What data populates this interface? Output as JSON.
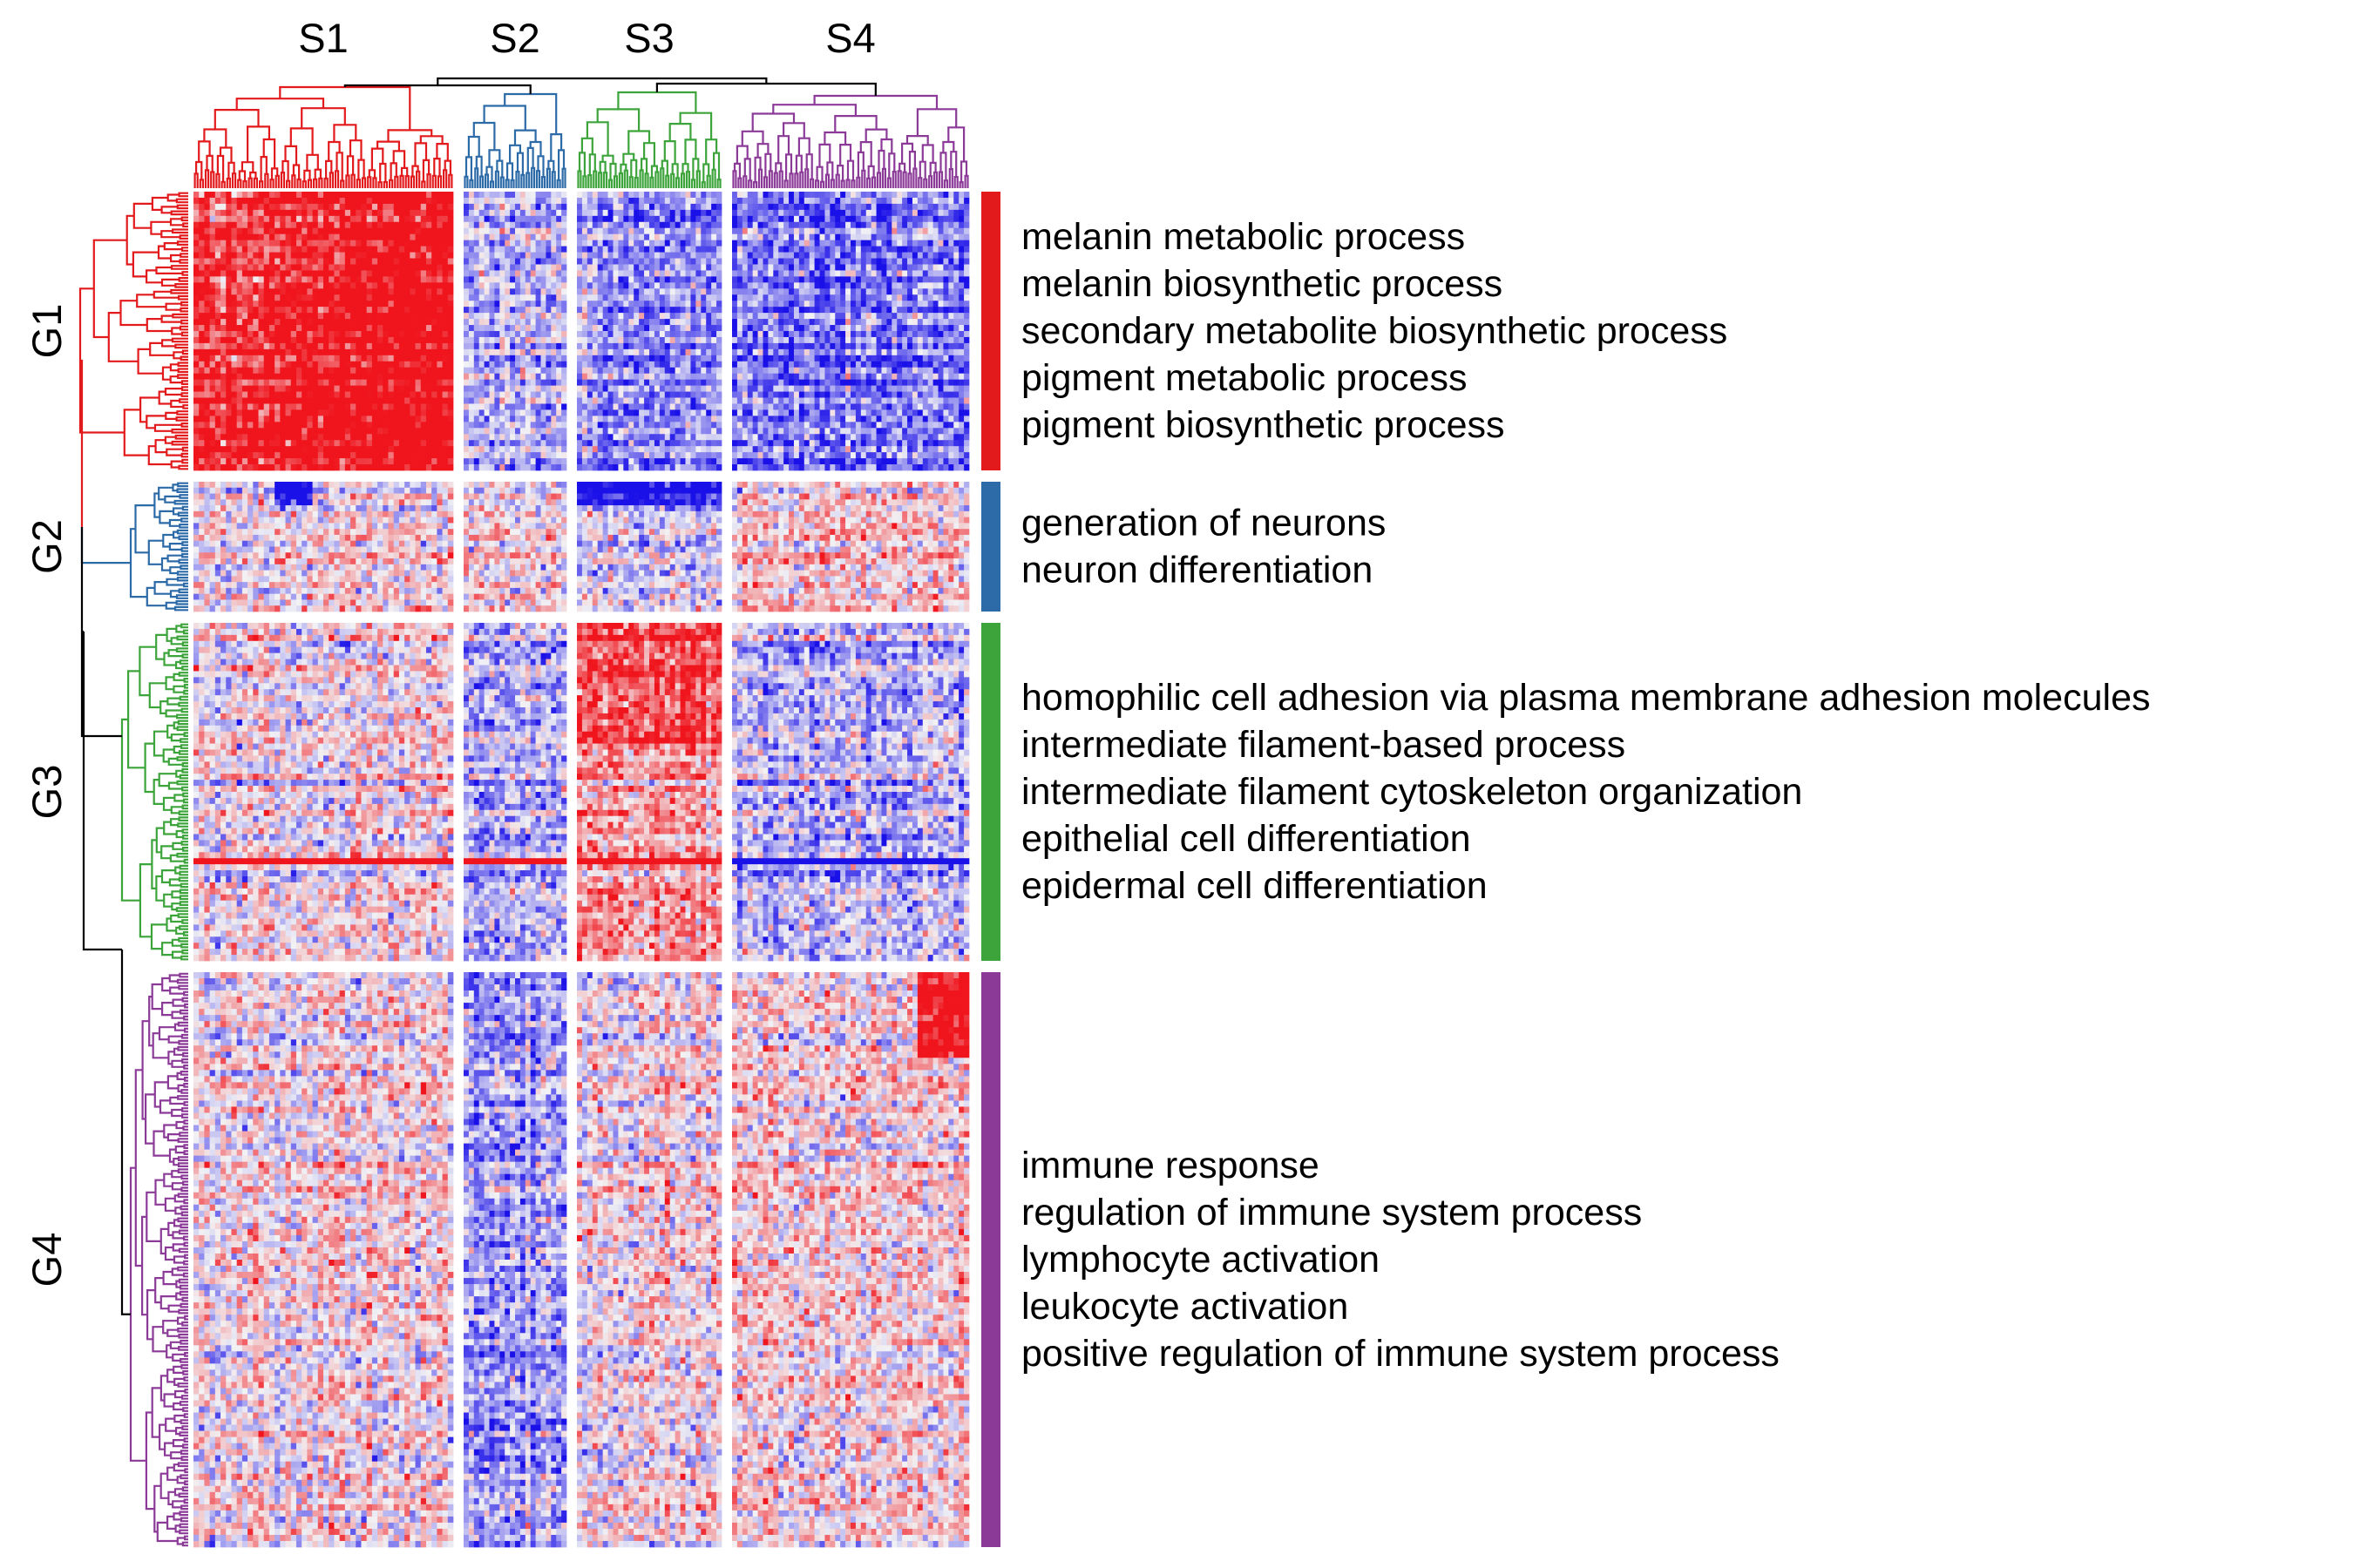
{
  "chart_data": {
    "type": "heatmap",
    "title": "",
    "xlabel": "",
    "ylabel": "",
    "grid": false,
    "legend": "none",
    "color_scale": {
      "low": "#1a10e8",
      "mid": "#f2f2f2",
      "high": "#f0141c"
    },
    "column_clusters": [
      {
        "label": "S1",
        "color": "#e31a1c"
      },
      {
        "label": "S2",
        "color": "#2c6aa8"
      },
      {
        "label": "S3",
        "color": "#3ca43a"
      },
      {
        "label": "S4",
        "color": "#8b3a98"
      }
    ],
    "row_clusters": [
      {
        "label": "G1",
        "color": "#e31a1c",
        "terms": [
          "melanin metabolic process",
          "melanin biosynthetic process",
          "secondary metabolite biosynthetic process",
          "pigment metabolic process",
          "pigment biosynthetic process"
        ]
      },
      {
        "label": "G2",
        "color": "#2c6aa8",
        "terms": [
          "generation of neurons",
          "neuron differentiation"
        ]
      },
      {
        "label": "G3",
        "color": "#3ca43a",
        "terms": [
          "homophilic cell adhesion via plasma membrane adhesion molecules",
          "intermediate filament-based process",
          "intermediate filament cytoskeleton organization",
          "epithelial cell differentiation",
          "epidermal cell differentiation"
        ]
      },
      {
        "label": "G4",
        "color": "#8b3a98",
        "terms": [
          "immune response",
          "regulation of immune system process",
          "lymphocyte activation",
          "leukocyte activation",
          "positive regulation of immune system process"
        ]
      }
    ],
    "block_mean_z": [
      [
        0.75,
        -0.3,
        -0.45,
        -0.55
      ],
      [
        0.05,
        0.05,
        -0.15,
        0.15
      ],
      [
        0.05,
        -0.3,
        0.4,
        -0.25
      ],
      [
        0.1,
        -0.35,
        0.05,
        0.15
      ]
    ]
  }
}
